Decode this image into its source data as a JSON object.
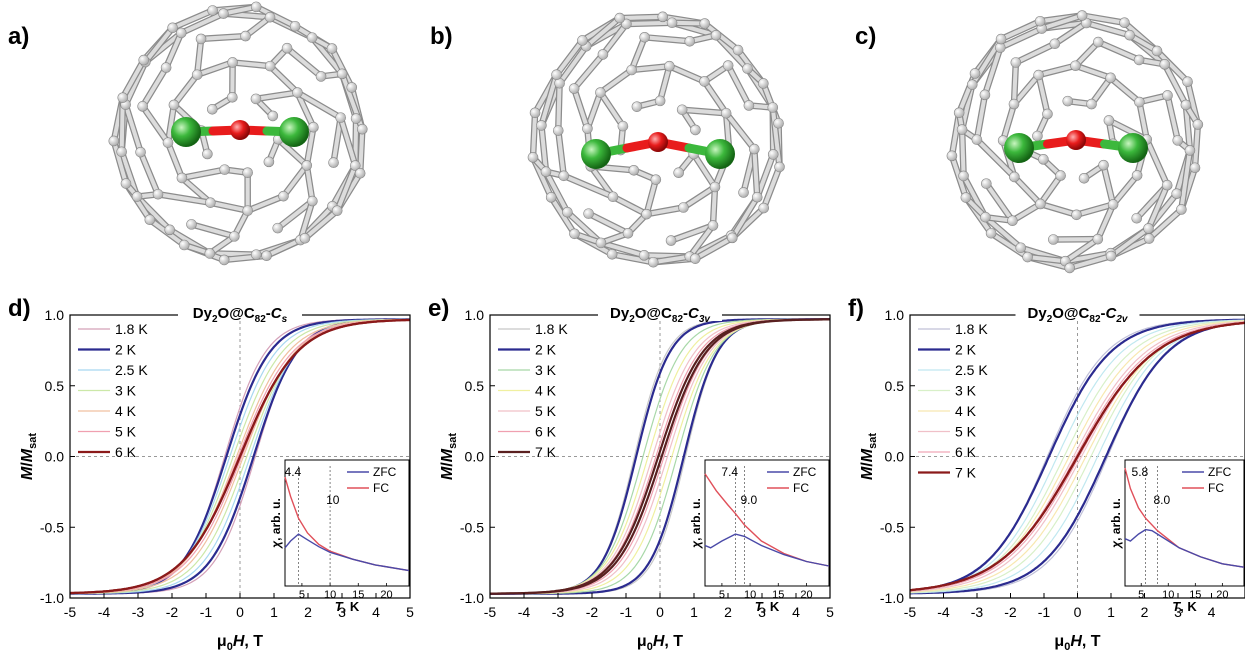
{
  "panels": [
    {
      "letter": "a)",
      "cage_label": "C82-Cs cage structure"
    },
    {
      "letter": "b)",
      "cage_label": "C82-C3v cage structure"
    },
    {
      "letter": "c)",
      "cage_label": "C82-C2v cage structure"
    }
  ],
  "colors": {
    "cage": "#c8c8c8",
    "cage_dark": "#9a9a9a",
    "dy_atom": "#3cb83c",
    "o_atom": "#e81c1c",
    "zfc": "#4a4aa8",
    "fc": "#e0505a"
  },
  "chart_data": [
    {
      "type": "line",
      "letter": "d)",
      "title": {
        "pre": "Dy",
        "sub1": "2",
        "mid": "O@C",
        "sub2": "82",
        "dash": "-",
        "sym": "C",
        "symsub": "s"
      },
      "xlabel": {
        "pre": "μ",
        "sub": "0",
        "var": "H",
        "unit": ", T"
      },
      "ylabel": {
        "var": "M",
        "slash": "/",
        "var2": "M",
        "sub": "sat"
      },
      "xlim": [
        -5,
        5
      ],
      "ylim": [
        -1.0,
        1.0
      ],
      "xticks": [
        "-5",
        "-4",
        "-3",
        "-2",
        "-1",
        "0",
        "1",
        "2",
        "3",
        "4",
        "5"
      ],
      "yticks": [
        "1.0",
        "0.5",
        "0.0",
        "-0.5",
        "-1.0"
      ],
      "series": [
        {
          "name": "1.8 K",
          "color": "#d4a0b8",
          "width": 1.2,
          "Hc": 0.45,
          "s": 0.75,
          "step": 0.25
        },
        {
          "name": "2 K",
          "color": "#2b2b8f",
          "width": 2.2,
          "Hc": 0.4,
          "s": 0.8,
          "step": 0.22
        },
        {
          "name": "2.5 K",
          "color": "#a8d8f0",
          "width": 1.2,
          "Hc": 0.3,
          "s": 0.85,
          "step": 0.15
        },
        {
          "name": "3 K",
          "color": "#cce8a8",
          "width": 1.2,
          "Hc": 0.2,
          "s": 0.9,
          "step": 0.1
        },
        {
          "name": "4 K",
          "color": "#f0c0a0",
          "width": 1.2,
          "Hc": 0.1,
          "s": 0.95,
          "step": 0.05
        },
        {
          "name": "5 K",
          "color": "#f0a0b0",
          "width": 1.2,
          "Hc": 0.05,
          "s": 1.0,
          "step": 0.02
        },
        {
          "name": "6 K",
          "color": "#8b1a1a",
          "width": 2.2,
          "Hc": 0.0,
          "s": 1.05,
          "step": 0.0
        }
      ],
      "inset": {
        "xticks": [
          "5",
          "10",
          "15",
          "20"
        ],
        "xlabel_var": "T",
        "xlabel_unit": ", K",
        "ylabel_var": "χ",
        "ylabel_unit": ", arb. u.",
        "legend": [
          "ZFC",
          "FC"
        ],
        "markers": [
          {
            "t": 4.4,
            "label": "4.4"
          },
          {
            "t": 10,
            "label": "10"
          }
        ],
        "xlim": [
          2,
          24
        ],
        "zfc": [
          [
            2,
            0.3
          ],
          [
            3,
            0.36
          ],
          [
            4.4,
            0.42
          ],
          [
            6,
            0.37
          ],
          [
            8,
            0.31
          ],
          [
            10,
            0.26
          ],
          [
            14,
            0.2
          ],
          [
            18,
            0.15
          ],
          [
            24,
            0.1
          ]
        ],
        "fc": [
          [
            2,
            0.92
          ],
          [
            3,
            0.75
          ],
          [
            4.4,
            0.56
          ],
          [
            6,
            0.43
          ],
          [
            8,
            0.33
          ],
          [
            10,
            0.27
          ],
          [
            14,
            0.2
          ],
          [
            18,
            0.15
          ],
          [
            24,
            0.1
          ]
        ]
      }
    },
    {
      "type": "line",
      "letter": "e)",
      "title": {
        "pre": "Dy",
        "sub1": "2",
        "mid": "O@C",
        "sub2": "82",
        "dash": "-",
        "sym": "C",
        "symsub": "3v"
      },
      "xlabel": {
        "pre": "μ",
        "sub": "0",
        "var": "H",
        "unit": ", T"
      },
      "ylabel": {
        "var": "M",
        "slash": "/",
        "var2": "M",
        "sub": "sat"
      },
      "xlim": [
        -5,
        5
      ],
      "ylim": [
        -1.0,
        1.0
      ],
      "xticks": [
        "-5",
        "-4",
        "-3",
        "-2",
        "-1",
        "0",
        "1",
        "2",
        "3",
        "4",
        "5"
      ],
      "yticks": [
        "1.0",
        "0.5",
        "0.0",
        "-0.5",
        "-1.0"
      ],
      "series": [
        {
          "name": "1.8 K",
          "color": "#c8c8c8",
          "width": 1.2,
          "Hc": 0.75,
          "s": 0.6,
          "step": 0.12
        },
        {
          "name": "2 K",
          "color": "#2b2b8f",
          "width": 2.2,
          "Hc": 0.7,
          "s": 0.62,
          "step": 0.1
        },
        {
          "name": "3 K",
          "color": "#a8d8a8",
          "width": 1.2,
          "Hc": 0.5,
          "s": 0.7,
          "step": 0.05
        },
        {
          "name": "4 K",
          "color": "#f0f0a0",
          "width": 1.2,
          "Hc": 0.35,
          "s": 0.75,
          "step": 0.0
        },
        {
          "name": "5 K",
          "color": "#f0c0c8",
          "width": 1.2,
          "Hc": 0.22,
          "s": 0.78,
          "step": 0.0
        },
        {
          "name": "6 K",
          "color": "#f0a0b0",
          "width": 1.2,
          "Hc": 0.12,
          "s": 0.8,
          "step": 0.0
        },
        {
          "name": "7 K",
          "color": "#5a2020",
          "width": 2.2,
          "Hc": 0.05,
          "s": 0.82,
          "step": 0.0
        }
      ],
      "inset": {
        "xticks": [
          "5",
          "10",
          "15",
          "20"
        ],
        "xlabel_var": "T",
        "xlabel_unit": ", K",
        "ylabel_var": "χ",
        "ylabel_unit": ", arb. u.",
        "legend": [
          "ZFC",
          "FC"
        ],
        "markers": [
          {
            "t": 7.4,
            "label": "7.4"
          },
          {
            "t": 9.0,
            "label": "9.0"
          }
        ],
        "xlim": [
          2,
          24
        ],
        "zfc": [
          [
            2,
            0.32
          ],
          [
            3,
            0.3
          ],
          [
            5,
            0.36
          ],
          [
            7.4,
            0.42
          ],
          [
            9,
            0.4
          ],
          [
            12,
            0.32
          ],
          [
            16,
            0.24
          ],
          [
            20,
            0.18
          ],
          [
            24,
            0.14
          ]
        ],
        "fc": [
          [
            2,
            0.95
          ],
          [
            4,
            0.8
          ],
          [
            6,
            0.68
          ],
          [
            7.4,
            0.6
          ],
          [
            9,
            0.5
          ],
          [
            12,
            0.36
          ],
          [
            16,
            0.25
          ],
          [
            20,
            0.18
          ],
          [
            24,
            0.14
          ]
        ]
      }
    },
    {
      "type": "line",
      "letter": "f)",
      "title": {
        "pre": "Dy",
        "sub1": "2",
        "mid": "O@C",
        "sub2": "82",
        "dash": "-",
        "sym": "C",
        "symsub": "2v"
      },
      "xlabel": {
        "pre": "μ",
        "sub": "0",
        "var": "H",
        "unit": ", T"
      },
      "ylabel": {
        "var": "M",
        "slash": "/",
        "var2": "M",
        "sub": "sat"
      },
      "xlim": [
        -5,
        5
      ],
      "ylim": [
        -1.0,
        1.0
      ],
      "xticks": [
        "-5",
        "-4",
        "-3",
        "-2",
        "-1",
        "0",
        "1",
        "2",
        "3",
        "4"
      ],
      "yticks": [
        "1.0",
        "0.5",
        "0.0",
        "-0.5",
        "-1.0"
      ],
      "series": [
        {
          "name": "1.8 K",
          "color": "#c0c0d8",
          "width": 1.2,
          "Hc": 0.9,
          "s": 1.1,
          "step": 0.35
        },
        {
          "name": "2 K",
          "color": "#2b2b8f",
          "width": 2.2,
          "Hc": 0.85,
          "s": 1.15,
          "step": 0.33
        },
        {
          "name": "2.5 K",
          "color": "#c0e8f0",
          "width": 1.2,
          "Hc": 0.6,
          "s": 1.2,
          "step": 0.25
        },
        {
          "name": "3 K",
          "color": "#d8f0c8",
          "width": 1.2,
          "Hc": 0.4,
          "s": 1.25,
          "step": 0.15
        },
        {
          "name": "4 K",
          "color": "#f8e8b0",
          "width": 1.2,
          "Hc": 0.25,
          "s": 1.3,
          "step": 0.08
        },
        {
          "name": "5 K",
          "color": "#f0c0c8",
          "width": 1.2,
          "Hc": 0.12,
          "s": 1.35,
          "step": 0.03
        },
        {
          "name": "6 K",
          "color": "#f0a8b8",
          "width": 1.2,
          "Hc": 0.05,
          "s": 1.4,
          "step": 0.0
        },
        {
          "name": "7 K",
          "color": "#8b1a1a",
          "width": 2.2,
          "Hc": 0.0,
          "s": 1.45,
          "step": 0.0
        }
      ],
      "inset": {
        "xticks": [
          "5",
          "10",
          "15",
          "20"
        ],
        "xlabel_var": "T",
        "xlabel_unit": ", K",
        "ylabel_var": "χ",
        "ylabel_unit": ", arb. u.",
        "legend": [
          "ZFC",
          "FC"
        ],
        "markers": [
          {
            "t": 5.8,
            "label": "5.8"
          },
          {
            "t": 8.0,
            "label": "8.0"
          }
        ],
        "xlim": [
          2,
          24
        ],
        "zfc": [
          [
            2,
            0.38
          ],
          [
            3,
            0.36
          ],
          [
            4.5,
            0.42
          ],
          [
            5.8,
            0.46
          ],
          [
            7,
            0.45
          ],
          [
            8,
            0.42
          ],
          [
            12,
            0.3
          ],
          [
            16,
            0.22
          ],
          [
            20,
            0.16
          ],
          [
            24,
            0.13
          ]
        ],
        "fc": [
          [
            2,
            1.0
          ],
          [
            3,
            0.82
          ],
          [
            4.5,
            0.65
          ],
          [
            5.8,
            0.56
          ],
          [
            8,
            0.45
          ],
          [
            12,
            0.3
          ],
          [
            16,
            0.22
          ],
          [
            20,
            0.16
          ],
          [
            24,
            0.13
          ]
        ]
      }
    }
  ]
}
